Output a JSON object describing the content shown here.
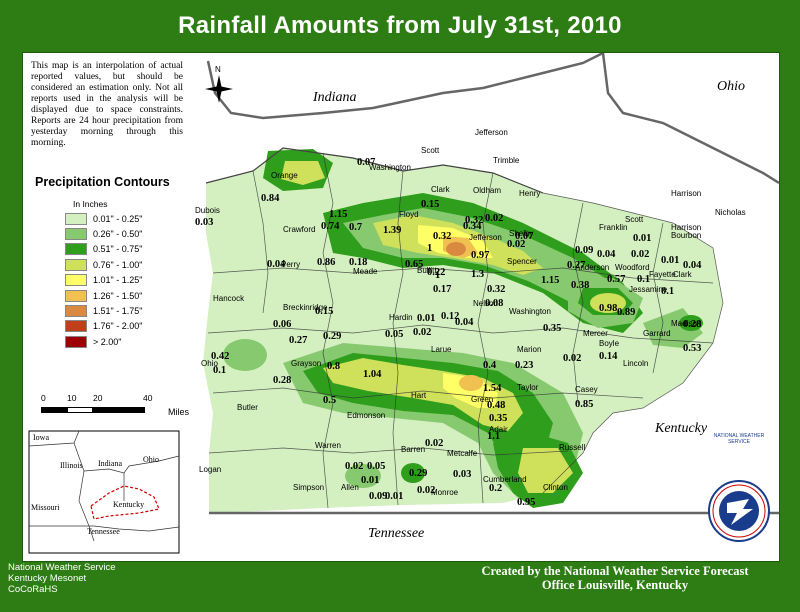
{
  "title": "Rainfall Amounts from July 31st, 2010",
  "disclaimer": "This map is an interpolation of actual reported values, but should be considered an estimation only. Not all reports used in the analysis will be displayed due to space constraints. Reports are 24 hour precipitation from yesterday morning through this morning.",
  "legend": {
    "title": "Precipitation Contours",
    "unit": "In Inches",
    "items": [
      {
        "label": "0.01\" - 0.25\"",
        "color": "#d4f0c0"
      },
      {
        "label": "0.26\" - 0.50\"",
        "color": "#86c96e"
      },
      {
        "label": "0.51\" - 0.75\"",
        "color": "#2f9e1c"
      },
      {
        "label": "0.76\" - 1.00\"",
        "color": "#cfe05a"
      },
      {
        "label": "1.01\" - 1.25\"",
        "color": "#ffff66"
      },
      {
        "label": "1.26\" - 1.50\"",
        "color": "#f0c050"
      },
      {
        "label": "1.51\" - 1.75\"",
        "color": "#d98a40"
      },
      {
        "label": "1.76\" - 2.00\"",
        "color": "#c0401c"
      },
      {
        "label": "> 2.00\"",
        "color": "#9c0000"
      }
    ]
  },
  "scale": {
    "ticks": [
      "0",
      "10",
      "20",
      "40"
    ],
    "unit": "Miles"
  },
  "north": "N",
  "states": {
    "indiana": "Indiana",
    "ohio": "Ohio",
    "kentucky": "Kentucky",
    "tennessee": "Tennessee"
  },
  "counties": [
    "Scott",
    "Jefferson",
    "Washington",
    "Trimble",
    "Orange",
    "Clark",
    "Oldham",
    "Henry",
    "Harrison",
    "Dubois",
    "Crawford",
    "Floyd",
    "Franklin",
    "Scott",
    "Nicholas",
    "Harrison",
    "Jefferson",
    "Shelby",
    "Bourbon",
    "Perry",
    "Meade",
    "Bullitt",
    "Spencer",
    "Anderson",
    "Woodford",
    "Fayette",
    "Clark",
    "Hancock",
    "Breckinridge",
    "Jessamine",
    "Hardin",
    "Nelson",
    "Washington",
    "Mercer",
    "Madison",
    "Boyle",
    "Garrard",
    "Ohio",
    "Grayson",
    "Larue",
    "Marion",
    "Lincoln",
    "Butler",
    "Hart",
    "Taylor",
    "Casey",
    "Green",
    "Edmonson",
    "Adair",
    "Warren",
    "Barren",
    "Russell",
    "Metcalfe",
    "Logan",
    "Simpson",
    "Allen",
    "Cumberland",
    "Monroe",
    "Clinton"
  ],
  "values": [
    "0.07",
    "0.84",
    "0.15",
    "0.34",
    "0.03",
    "1.15",
    "0.32",
    "0.02",
    "0.74",
    "0.7",
    "1.39",
    "0.32",
    "1",
    "0.97",
    "0.07",
    "0.02",
    "0.01",
    "0.09",
    "0.04",
    "0.02",
    "0.01",
    "0.04",
    "0.86",
    "0.18",
    "0.65",
    "1",
    "1.3",
    "0.27",
    "0.57",
    "0.1",
    "0.22",
    "1.15",
    "0.38",
    "0.04",
    "0.17",
    "0.32",
    "0.1",
    "0.15",
    "0.08",
    "0.98",
    "0.89",
    "0.06",
    "0.01",
    "0.12",
    "0.28",
    "0.27",
    "0.29",
    "0.05",
    "0.02",
    "0.04",
    "0.35",
    "0.14",
    "0.53",
    "0.42",
    "0.8",
    "0.4",
    "0.23",
    "0.02",
    "0.1",
    "1.04",
    "0.28",
    "1.54",
    "0.5",
    "0.48",
    "0.85",
    "0.35",
    "1.1",
    "0.02",
    "0.02",
    "0.05",
    "0.03",
    "0.01",
    "0.09",
    "0.29",
    "0.2",
    "0.01",
    "0.02",
    "0.95"
  ],
  "inset": {
    "states": [
      "Iowa",
      "Illinois",
      "Indiana",
      "Ohio",
      "Missouri",
      "Kentucky",
      "Tennessee"
    ]
  },
  "footer": {
    "left": [
      "National Weather Service",
      "Kentucky Mesonet",
      "CoCoRaHS"
    ],
    "right": [
      "Created by the National Weather Service Forecast",
      "Office Louisville, Kentucky"
    ]
  },
  "logo_text": "NATIONAL WEATHER SERVICE"
}
